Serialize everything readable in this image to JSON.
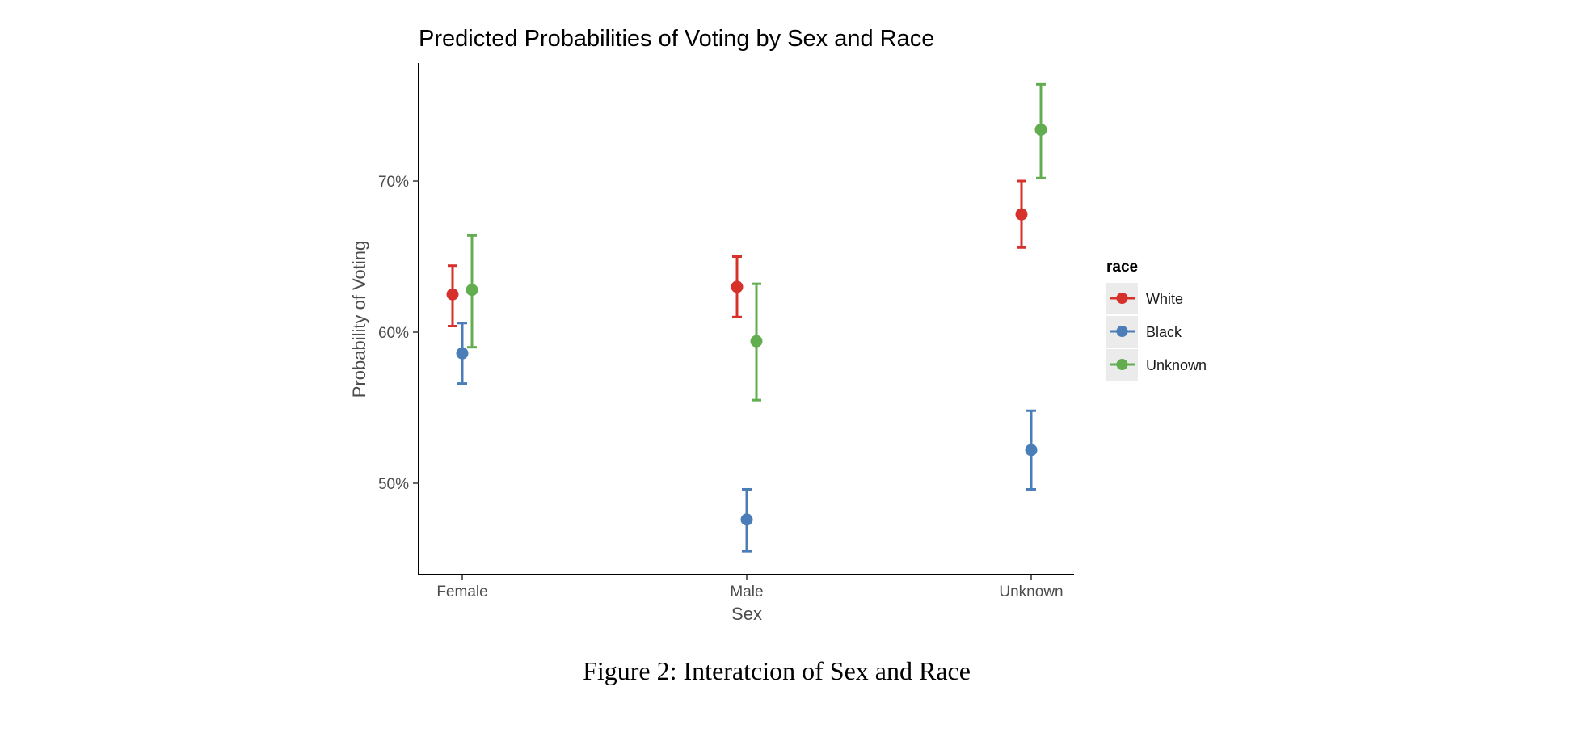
{
  "chart_data": {
    "type": "scatter",
    "title": "Predicted Probabilities of Voting by Sex and Race",
    "xlabel": "Sex",
    "ylabel": "Probability of Voting",
    "categories": [
      "Female",
      "Male",
      "Unknown"
    ],
    "ylim": [
      44,
      78
    ],
    "yticks": [
      50,
      60,
      70
    ],
    "ytick_labels": [
      "50%",
      "60%",
      "70%"
    ],
    "grid": false,
    "legend": {
      "title": "race",
      "placement": "right"
    },
    "series": [
      {
        "name": "White",
        "color": "#d7312b",
        "values": [
          62.5,
          63.0,
          67.8
        ],
        "lower": [
          60.4,
          61.0,
          65.6
        ],
        "upper": [
          64.4,
          65.0,
          70.0
        ]
      },
      {
        "name": "Black",
        "color": "#4b7db8",
        "values": [
          58.6,
          47.6,
          52.2
        ],
        "lower": [
          56.6,
          45.5,
          49.6
        ],
        "upper": [
          60.6,
          49.6,
          54.8
        ]
      },
      {
        "name": "Unknown",
        "color": "#63ad51",
        "values": [
          62.8,
          59.4,
          73.4
        ],
        "lower": [
          59.0,
          55.5,
          70.2
        ],
        "upper": [
          66.4,
          63.2,
          76.4
        ]
      }
    ]
  },
  "caption": "Figure 2: Interatcion of Sex and Race"
}
